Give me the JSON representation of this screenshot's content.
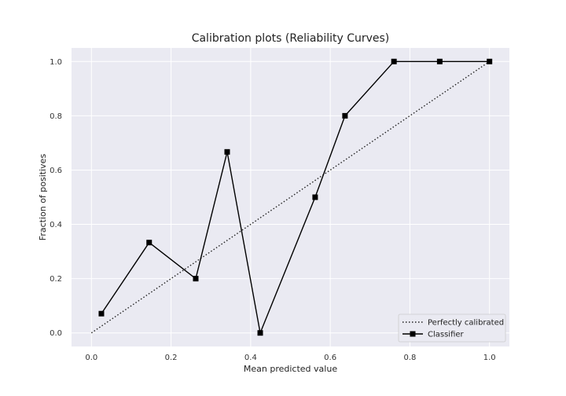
{
  "chart_data": {
    "type": "line",
    "title": "Calibration plots (Reliability Curves)",
    "xlabel": "Mean predicted value",
    "ylabel": "Fraction of positives",
    "xlim": [
      -0.05,
      1.05
    ],
    "ylim": [
      -0.05,
      1.05
    ],
    "x_ticks": [
      "0.0",
      "0.2",
      "0.4",
      "0.6",
      "0.8",
      "1.0"
    ],
    "y_ticks": [
      "0.0",
      "0.2",
      "0.4",
      "0.6",
      "0.8",
      "1.0"
    ],
    "grid": true,
    "legend_position": "bottom-right",
    "series": [
      {
        "name": "Perfectly calibrated",
        "style": "dotted",
        "color": "#222222",
        "x": [
          0.0,
          1.0
        ],
        "y": [
          0.0,
          1.0
        ]
      },
      {
        "name": "Classifier",
        "style": "solid",
        "marker": "square",
        "color": "#000000",
        "x": [
          0.025,
          0.145,
          0.262,
          0.341,
          0.424,
          0.562,
          0.637,
          0.76,
          0.875,
          1.0
        ],
        "y": [
          0.071,
          0.333,
          0.2,
          0.667,
          0.0,
          0.5,
          0.8,
          1.0,
          1.0,
          1.0
        ]
      }
    ]
  },
  "colors": {
    "plot_background": "#eaeaf2",
    "grid": "#ffffff"
  }
}
